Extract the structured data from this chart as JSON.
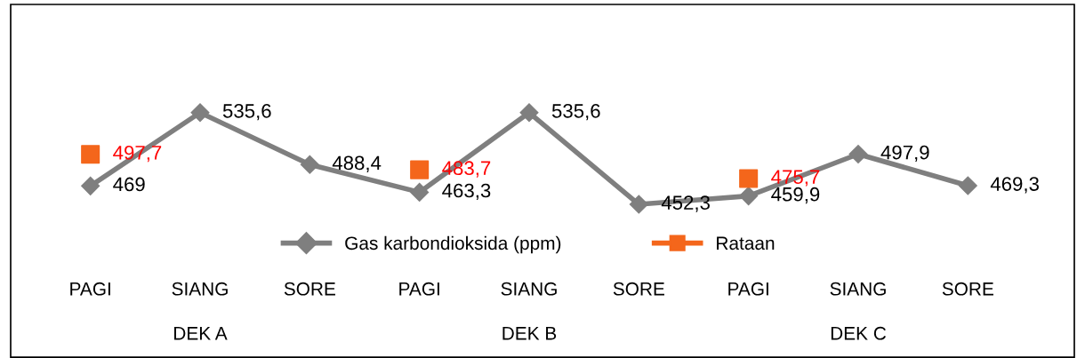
{
  "chart_data": {
    "type": "line",
    "categories": [
      "PAGI",
      "SIANG",
      "SORE",
      "PAGI",
      "SIANG",
      "SORE",
      "PAGI",
      "SIANG",
      "SORE"
    ],
    "annotations": [
      "DEK A",
      "DEK B",
      "DEK C"
    ],
    "series": [
      {
        "name": "Gas karbondioksida (ppm)",
        "color": "#7f7f7f",
        "values": [
          469,
          535.6,
          488.4,
          463.3,
          535.6,
          452.3,
          459.9,
          497.9,
          469.3
        ],
        "value_labels": [
          "469",
          "535,6",
          "488,4",
          "463,3",
          "535,6",
          "452,3",
          "459,9",
          "497,9",
          "469,3"
        ],
        "marker": "diamond"
      },
      {
        "name": "Rataan",
        "type": "scatter",
        "color": "#f4661b",
        "values": [
          497.7,
          null,
          null,
          483.7,
          null,
          null,
          475.7,
          null,
          null
        ],
        "value_labels": [
          "497,7",
          null,
          null,
          "483,7",
          null,
          null,
          "475,7",
          null,
          null
        ],
        "marker": "square"
      }
    ],
    "legend": "bottom"
  }
}
